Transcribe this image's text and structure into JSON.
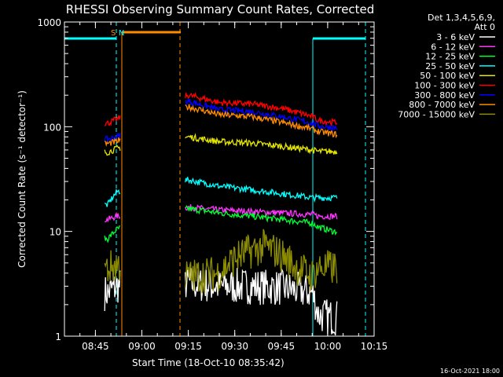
{
  "chart_data": {
    "type": "line",
    "title": "RHESSI Observing Summary Count Rates, Corrected",
    "xlabel": "Start Time (18-Oct-10 08:35:42)",
    "ylabel": "Corrected Count Rate (s⁻¹ detector⁻¹)",
    "yscale": "log",
    "ylim": [
      1,
      1000
    ],
    "xlim_minutes": [
      0,
      100
    ],
    "x_ticks": [
      {
        "m": 10,
        "label": "08:45"
      },
      {
        "m": 25,
        "label": "09:00"
      },
      {
        "m": 40,
        "label": "09:15"
      },
      {
        "m": 55,
        "label": "09:30"
      },
      {
        "m": 70,
        "label": "09:45"
      },
      {
        "m": 85,
        "label": "10:00"
      },
      {
        "m": 100,
        "label": "10:15"
      }
    ],
    "y_ticks": [
      {
        "v": 1,
        "label": "1"
      },
      {
        "v": 10,
        "label": "10"
      },
      {
        "v": 100,
        "label": "100"
      },
      {
        "v": 1000,
        "label": "1000"
      }
    ],
    "legend_header": [
      "Det 1,3,4,5,6,9,",
      "Att 0"
    ],
    "legend_position": "right",
    "series": [
      {
        "name": "3 - 6 keV",
        "color": "#ffffff",
        "y_rate": [
          [
            14,
            2.6
          ],
          [
            17,
            3.0
          ],
          [
            40,
            3.2
          ],
          [
            50,
            3.0
          ],
          [
            60,
            3.0
          ],
          [
            70,
            2.9
          ],
          [
            80,
            2.6
          ],
          [
            82,
            1.6
          ],
          [
            87,
            1.5
          ]
        ]
      },
      {
        "name": "6 - 12 keV",
        "color": "#ff33ff",
        "y_rate": [
          [
            14,
            13
          ],
          [
            17,
            14
          ],
          [
            40,
            17
          ],
          [
            50,
            16
          ],
          [
            60,
            15.5
          ],
          [
            70,
            15
          ],
          [
            80,
            14.5
          ],
          [
            82,
            14
          ],
          [
            87,
            14
          ]
        ]
      },
      {
        "name": "12 - 25 keV",
        "color": "#00ff33",
        "y_rate": [
          [
            14,
            8.5
          ],
          [
            17,
            10.5
          ],
          [
            40,
            16.5
          ],
          [
            50,
            15
          ],
          [
            60,
            14
          ],
          [
            70,
            13
          ],
          [
            80,
            12
          ],
          [
            82,
            11
          ],
          [
            87,
            10
          ]
        ]
      },
      {
        "name": "25 - 50 keV",
        "color": "#00ffff",
        "y_rate": [
          [
            14,
            18
          ],
          [
            17,
            24
          ],
          [
            40,
            31
          ],
          [
            50,
            27
          ],
          [
            60,
            25
          ],
          [
            70,
            23
          ],
          [
            80,
            21
          ],
          [
            82,
            21
          ],
          [
            87,
            21
          ]
        ]
      },
      {
        "name": "50 - 100 keV",
        "color": "#e6e600",
        "y_rate": [
          [
            14,
            57
          ],
          [
            17,
            62
          ],
          [
            40,
            80
          ],
          [
            50,
            72
          ],
          [
            60,
            70
          ],
          [
            70,
            65
          ],
          [
            80,
            60
          ],
          [
            82,
            58
          ],
          [
            87,
            58
          ]
        ]
      },
      {
        "name": "100 - 300 keV",
        "color": "#ff0000",
        "y_rate": [
          [
            14,
            108
          ],
          [
            17,
            118
          ],
          [
            40,
            200
          ],
          [
            50,
            170
          ],
          [
            60,
            165
          ],
          [
            70,
            150
          ],
          [
            80,
            125
          ],
          [
            82,
            115
          ],
          [
            87,
            110
          ]
        ]
      },
      {
        "name": "300 - 800 keV",
        "color": "#0000ff",
        "y_rate": [
          [
            14,
            76
          ],
          [
            17,
            80
          ],
          [
            40,
            175
          ],
          [
            50,
            145
          ],
          [
            60,
            140
          ],
          [
            70,
            125
          ],
          [
            80,
            108
          ],
          [
            82,
            102
          ],
          [
            87,
            98
          ]
        ]
      },
      {
        "name": "800 - 7000 keV",
        "color": "#ff8c00",
        "y_rate": [
          [
            14,
            69
          ],
          [
            17,
            72
          ],
          [
            40,
            155
          ],
          [
            50,
            130
          ],
          [
            60,
            125
          ],
          [
            70,
            110
          ],
          [
            80,
            95
          ],
          [
            82,
            90
          ],
          [
            87,
            85
          ]
        ]
      },
      {
        "name": "7000 - 15000 keV",
        "color": "#8c8c00",
        "y_rate": [
          [
            14,
            4.4
          ],
          [
            17,
            4.8
          ],
          [
            40,
            3.7
          ],
          [
            50,
            4.0
          ],
          [
            55,
            5.5
          ],
          [
            60,
            6.5
          ],
          [
            65,
            7.2
          ],
          [
            70,
            6.0
          ],
          [
            75,
            4.5
          ],
          [
            80,
            3.8
          ],
          [
            82,
            4.5
          ],
          [
            87,
            4.5
          ]
        ]
      }
    ],
    "flags": [
      {
        "label": "S",
        "color": "#ff8c00",
        "at_minute": 17.5
      },
      {
        "label": "N",
        "color": "#00ffff",
        "at_minute": 18.5
      }
    ]
  },
  "footer_stamp": "16-Oct-2021 18:00"
}
